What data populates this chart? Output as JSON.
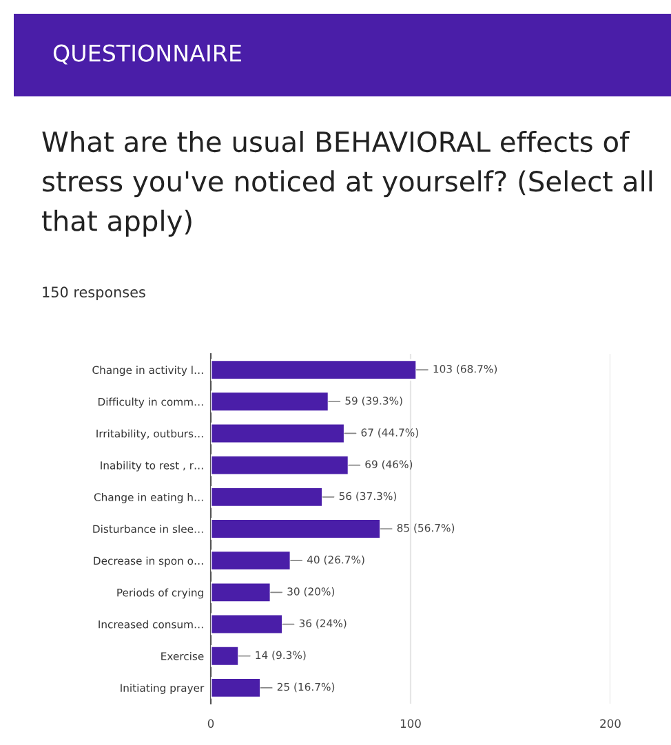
{
  "chart_data": {
    "type": "bar",
    "orientation": "horizontal",
    "title": "QUESTIONNAIRE",
    "subtitle": "What are the usual BEHAVIORAL effects of stress you've noticed at yourself? (Select all that apply)",
    "annotations": [
      "150 responses"
    ],
    "categories": [
      "Change in activity l…",
      "Difficulty in comm…",
      "Irritability, outburs…",
      "Inability to rest , r…",
      "Change in eating h…",
      "Disturbance in slee…",
      "Decrease in spon o…",
      "Periods of crying",
      "Increased consum…",
      "Exercise",
      "Initiating prayer"
    ],
    "values": [
      103,
      59,
      67,
      69,
      56,
      85,
      40,
      30,
      36,
      14,
      25
    ],
    "value_labels": [
      "103 (68.7%)",
      "59 (39.3%)",
      "67 (44.7%)",
      "69 (46%)",
      "56 (37.3%)",
      "85 (56.7%)",
      "40 (26.7%)",
      "30 (20%)",
      "36 (24%)",
      "14 (9.3%)",
      "25 (16.7%)"
    ],
    "color": "#4a1ea8",
    "xlim": [
      0,
      200
    ],
    "xticks": [
      0,
      100,
      200
    ],
    "grid": "x",
    "legend": false
  }
}
